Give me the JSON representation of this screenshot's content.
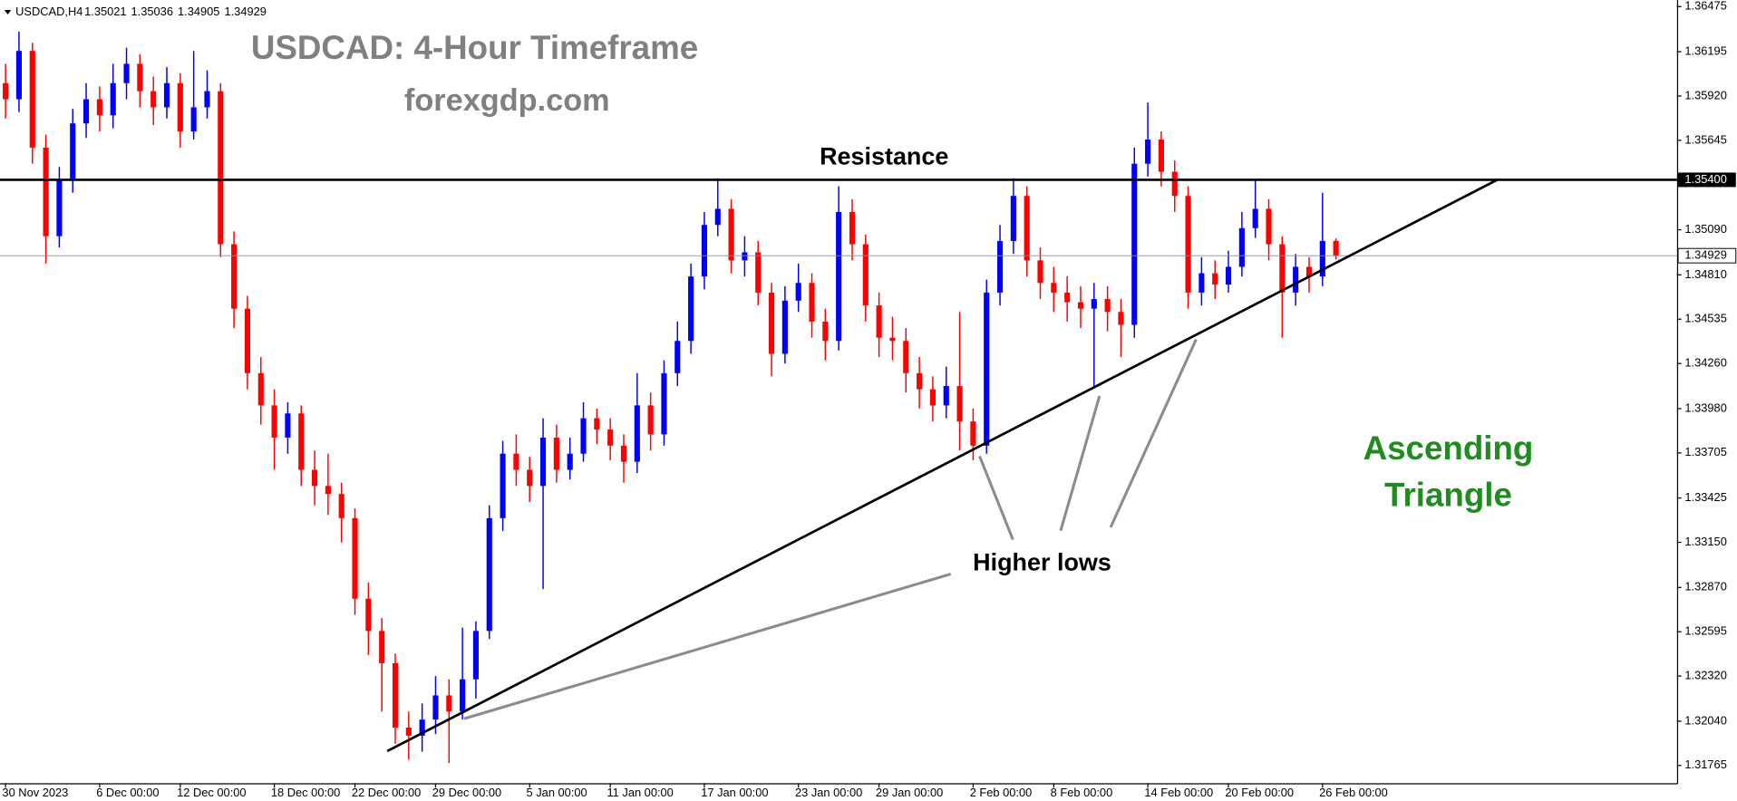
{
  "chart_data": {
    "type": "candlestick",
    "title": "USDCAD: 4-Hour Timeframe",
    "subtitle": "forexgdp.com",
    "header_ohlc": [
      1.35021,
      1.35036,
      1.34905,
      1.34929
    ],
    "annotations": {
      "resistance": "Resistance",
      "higher_lows": "Higher lows",
      "pattern": [
        "Ascending",
        "Triangle"
      ]
    },
    "categories": [
      "30 Nov 2023",
      null,
      null,
      null,
      null,
      null,
      null,
      "6 Dec 00:00",
      null,
      null,
      null,
      null,
      null,
      "12 Dec 00:00",
      null,
      null,
      null,
      null,
      null,
      null,
      "18 Dec 00:00",
      null,
      null,
      null,
      null,
      null,
      "22 Dec 00:00",
      null,
      null,
      null,
      null,
      null,
      "29 Dec 00:00",
      null,
      null,
      null,
      null,
      null,
      null,
      "5 Jan 00:00",
      null,
      null,
      null,
      null,
      null,
      "11 Jan 00:00",
      null,
      null,
      null,
      null,
      null,
      null,
      "17 Jan 00:00",
      null,
      null,
      null,
      null,
      null,
      null,
      "23 Jan 00:00",
      null,
      null,
      null,
      null,
      null,
      "29 Jan 00:00",
      null,
      null,
      null,
      null,
      null,
      null,
      "2 Feb 00:00",
      null,
      null,
      null,
      null,
      null,
      "8 Feb 00:00",
      null,
      null,
      null,
      null,
      null,
      null,
      "14 Feb 00:00",
      null,
      null,
      null,
      null,
      null,
      "20 Feb 00:00",
      null,
      null,
      null,
      null,
      null,
      null,
      "26 Feb 00:00",
      null
    ],
    "series": [
      {
        "name": "USDCAD,H4",
        "up_color": "#0000ff",
        "down_color": "#ff0000",
        "open": [
          1.36,
          1.359,
          1.362,
          1.356,
          1.3505,
          1.354,
          1.3575,
          1.359,
          1.358,
          1.36,
          1.3612,
          1.3595,
          1.3585,
          1.36,
          1.357,
          1.3585,
          1.3595,
          1.35,
          1.346,
          1.342,
          1.34,
          1.338,
          1.3395,
          1.336,
          1.335,
          1.3345,
          1.333,
          1.328,
          1.326,
          1.324,
          1.32,
          1.3195,
          1.3205,
          1.322,
          1.321,
          1.323,
          1.326,
          1.333,
          1.337,
          1.336,
          1.335,
          1.338,
          1.336,
          1.337,
          1.3392,
          1.3385,
          1.3375,
          1.3365,
          1.34,
          1.3382,
          1.342,
          1.344,
          1.348,
          1.3512,
          1.3522,
          1.349,
          1.3495,
          1.347,
          1.3432,
          1.3465,
          1.3476,
          1.3452,
          1.344,
          1.352,
          1.35,
          1.3462,
          1.3442,
          1.344,
          1.342,
          1.341,
          1.34,
          1.3412,
          1.339,
          1.3375,
          1.347,
          1.3502,
          1.353,
          1.349,
          1.3476,
          1.347,
          1.3464,
          1.346,
          1.3466,
          1.3458,
          1.345,
          1.355,
          1.3565,
          1.3545,
          1.353,
          1.347,
          1.3482,
          1.3475,
          1.3486,
          1.351,
          1.3522,
          1.35,
          1.347,
          1.3486,
          1.348,
          1.35021
        ],
        "high": [
          1.3612,
          1.3632,
          1.3625,
          1.3568,
          1.3548,
          1.3584,
          1.36,
          1.3598,
          1.3612,
          1.3622,
          1.3618,
          1.3604,
          1.361,
          1.3606,
          1.362,
          1.3608,
          1.36,
          1.3508,
          1.3468,
          1.343,
          1.341,
          1.3402,
          1.34,
          1.3372,
          1.337,
          1.3352,
          1.3336,
          1.329,
          1.3268,
          1.3246,
          1.321,
          1.3215,
          1.3232,
          1.323,
          1.3262,
          1.3266,
          1.3338,
          1.3378,
          1.3382,
          1.3368,
          1.3392,
          1.3388,
          1.338,
          1.3402,
          1.3398,
          1.3392,
          1.3382,
          1.342,
          1.3408,
          1.3428,
          1.3452,
          1.3488,
          1.352,
          1.3541,
          1.3528,
          1.3505,
          1.3502,
          1.3476,
          1.3474,
          1.3488,
          1.3482,
          1.346,
          1.3536,
          1.3528,
          1.3506,
          1.347,
          1.3455,
          1.3448,
          1.343,
          1.3418,
          1.3424,
          1.3458,
          1.3398,
          1.3478,
          1.3512,
          1.3541,
          1.3536,
          1.3498,
          1.3486,
          1.348,
          1.3474,
          1.3476,
          1.3474,
          1.3466,
          1.356,
          1.3588,
          1.357,
          1.3552,
          1.3536,
          1.3492,
          1.349,
          1.3496,
          1.352,
          1.354,
          1.3528,
          1.3505,
          1.3494,
          1.3492,
          1.3532,
          1.35036
        ],
        "low": [
          1.3578,
          1.3582,
          1.355,
          1.3488,
          1.3498,
          1.3532,
          1.3566,
          1.357,
          1.3572,
          1.359,
          1.3585,
          1.3574,
          1.3578,
          1.356,
          1.3565,
          1.3578,
          1.3492,
          1.3448,
          1.341,
          1.3388,
          1.336,
          1.337,
          1.335,
          1.3338,
          1.3332,
          1.3315,
          1.327,
          1.3245,
          1.321,
          1.319,
          1.318,
          1.3185,
          1.3196,
          1.3178,
          1.3205,
          1.3218,
          1.3255,
          1.3322,
          1.335,
          1.334,
          1.3286,
          1.3352,
          1.3354,
          1.3365,
          1.3376,
          1.3366,
          1.3352,
          1.3358,
          1.3372,
          1.3375,
          1.3412,
          1.3432,
          1.3472,
          1.3505,
          1.3482,
          1.348,
          1.3462,
          1.3418,
          1.3426,
          1.3458,
          1.3442,
          1.3428,
          1.3434,
          1.349,
          1.3452,
          1.343,
          1.3428,
          1.3408,
          1.3398,
          1.339,
          1.3392,
          1.3372,
          1.3366,
          1.337,
          1.3462,
          1.3494,
          1.348,
          1.3466,
          1.3458,
          1.3452,
          1.3448,
          1.3412,
          1.3446,
          1.343,
          1.3442,
          1.3542,
          1.3536,
          1.352,
          1.346,
          1.3462,
          1.3466,
          1.347,
          1.348,
          1.3504,
          1.349,
          1.3442,
          1.3462,
          1.347,
          1.3474,
          1.34905
        ],
        "close": [
          1.359,
          1.362,
          1.356,
          1.3505,
          1.354,
          1.3575,
          1.359,
          1.358,
          1.36,
          1.3612,
          1.3595,
          1.3585,
          1.36,
          1.357,
          1.3585,
          1.3595,
          1.35,
          1.346,
          1.342,
          1.34,
          1.338,
          1.3395,
          1.336,
          1.335,
          1.3345,
          1.333,
          1.328,
          1.326,
          1.324,
          1.32,
          1.3195,
          1.3205,
          1.322,
          1.321,
          1.323,
          1.326,
          1.333,
          1.337,
          1.336,
          1.335,
          1.338,
          1.336,
          1.337,
          1.3392,
          1.3385,
          1.3375,
          1.3365,
          1.34,
          1.3382,
          1.342,
          1.344,
          1.348,
          1.3512,
          1.3522,
          1.349,
          1.3495,
          1.347,
          1.3432,
          1.3465,
          1.3476,
          1.3452,
          1.344,
          1.352,
          1.35,
          1.3462,
          1.3442,
          1.344,
          1.342,
          1.341,
          1.34,
          1.3412,
          1.339,
          1.3375,
          1.347,
          1.3502,
          1.353,
          1.349,
          1.3476,
          1.347,
          1.3464,
          1.346,
          1.3466,
          1.3458,
          1.345,
          1.355,
          1.3565,
          1.3545,
          1.353,
          1.347,
          1.3482,
          1.3475,
          1.3486,
          1.351,
          1.3522,
          1.35,
          1.347,
          1.3486,
          1.348,
          1.35021,
          1.34929
        ]
      }
    ],
    "ylim": [
      1.31655,
      1.36516
    ],
    "yticks": [
      1.36475,
      1.36195,
      {
        "value": 1.3592,
        "label": "1.35920"
      },
      1.35645,
      {
        "value": 1.3509,
        "label": "1.35090"
      },
      {
        "value": 1.3481,
        "label": "1.34810"
      },
      1.34535,
      {
        "value": 1.3426,
        "label": "1.34260"
      },
      {
        "value": 1.3398,
        "label": "1.33980"
      },
      1.33705,
      1.33425,
      {
        "value": 1.3315,
        "label": "1.33150"
      },
      {
        "value": 1.3287,
        "label": "1.32870"
      },
      1.32595,
      {
        "value": 1.3232,
        "label": "1.32320"
      },
      {
        "value": 1.3204,
        "label": "1.32040"
      },
      1.31765
    ],
    "resistance_level": {
      "value": 1.354,
      "label": "1.35400"
    },
    "current_price": 1.34929,
    "support_line": {
      "x": [
        28.4,
        111
      ],
      "y": [
        1.31854,
        1.354
      ]
    }
  }
}
